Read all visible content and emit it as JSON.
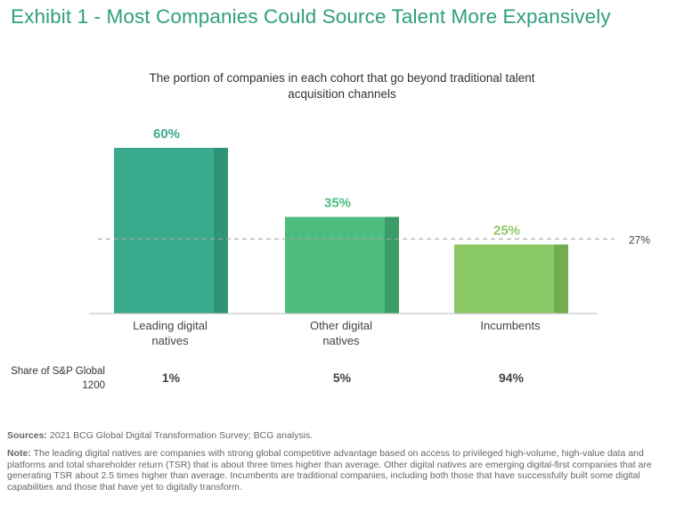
{
  "title": "Exhibit 1 - Most Companies Could Source Talent More Expansively",
  "colors": {
    "title": "#2f9e7f",
    "bar_1": "#3aaa8d",
    "bar_1_side": "#2f9377",
    "bar_2": "#4cbd7e",
    "bar_2_side": "#3a9d67",
    "bar_3": "#8bc966",
    "bar_3_side": "#72ae51",
    "value_1": "#3aaa8d",
    "value_2": "#4cbd7e",
    "value_3": "#8bc966"
  },
  "chart_data": {
    "type": "bar",
    "title": "The portion of companies in each cohort that go beyond traditional talent acquisition channels",
    "categories": [
      "Leading digital natives",
      "Other digital natives",
      "Incumbents"
    ],
    "values": [
      60,
      35,
      25
    ],
    "value_labels": [
      "60%",
      "35%",
      "25%"
    ],
    "unit": "%",
    "ylim": [
      0,
      60
    ],
    "reference_line": {
      "value": 27,
      "label": "27%"
    },
    "xlabel": "",
    "ylabel": "",
    "grid": false
  },
  "share": {
    "label": "Share of S&P Global 1200",
    "values": [
      "1%",
      "5%",
      "94%"
    ]
  },
  "footer": {
    "sources_label": "Sources:",
    "sources_text": "2021 BCG Global Digital Transformation Survey; BCG analysis.",
    "note_label": "Note:",
    "note_text": "The leading digital natives are companies with strong global competitive advantage based on access to privileged high-volume, high-value data and platforms and total shareholder return (TSR) that is about three times higher than average. Other digital natives are emerging digital-first companies that are generating TSR about 2.5 times higher than average. Incumbents are traditional companies, including both those that have successfully built some digital capabilities and those that have yet to digitally transform."
  }
}
